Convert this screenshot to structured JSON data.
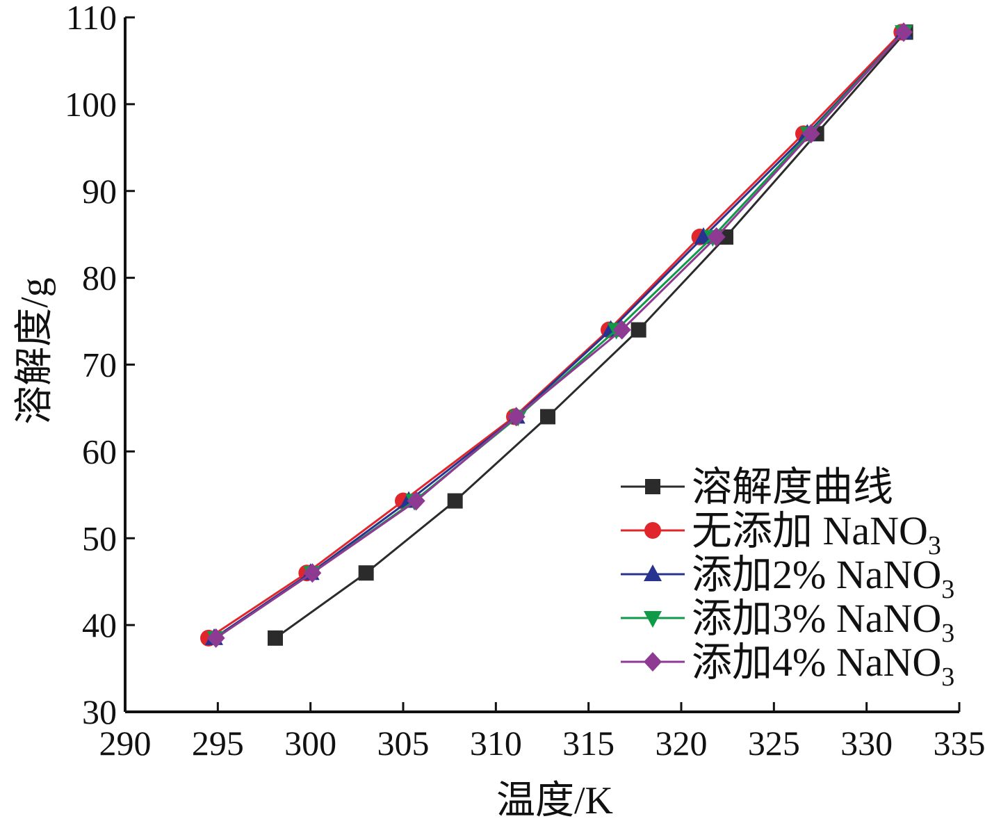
{
  "chart_data": {
    "type": "line",
    "xlabel": "温度/K",
    "ylabel": "溶解度/g",
    "xlim": [
      290,
      335
    ],
    "ylim": [
      30,
      110
    ],
    "xticks": [
      290,
      295,
      300,
      305,
      310,
      315,
      320,
      325,
      330,
      335
    ],
    "yticks": [
      30,
      40,
      50,
      60,
      70,
      80,
      90,
      100,
      110
    ],
    "grid": false,
    "legend_position": "bottom-right",
    "series": [
      {
        "name": "溶解度曲线",
        "color": "#2b2b2b",
        "marker": "square",
        "x": [
          298.1,
          303.0,
          307.8,
          312.8,
          317.7,
          322.4,
          327.3,
          332.1
        ],
        "y": [
          38.5,
          46.0,
          54.3,
          64.0,
          74.0,
          84.7,
          96.6,
          108.3
        ]
      },
      {
        "name": "无添加 NaNO3",
        "label_main": "无添加 NaNO",
        "label_sub": "3",
        "color": "#e0262b",
        "marker": "circle",
        "x": [
          294.5,
          299.8,
          305.0,
          311.0,
          316.1,
          321.0,
          326.6,
          331.9
        ],
        "y": [
          38.5,
          46.0,
          54.3,
          64.0,
          74.0,
          84.7,
          96.6,
          108.3
        ]
      },
      {
        "name": "添加2% NaNO3",
        "label_main": "添加2% NaNO",
        "label_sub": "3",
        "color": "#27338f",
        "marker": "triangle-up",
        "x": [
          294.8,
          300.0,
          305.3,
          311.1,
          316.2,
          321.2,
          326.8,
          332.0
        ],
        "y": [
          38.5,
          46.0,
          54.3,
          64.0,
          74.0,
          84.7,
          96.6,
          108.3
        ]
      },
      {
        "name": "添加3% NaNO3",
        "label_main": "添加3% NaNO",
        "label_sub": "3",
        "color": "#0f9a48",
        "marker": "triangle-down",
        "x": [
          294.9,
          300.1,
          305.6,
          311.2,
          316.5,
          321.7,
          326.9,
          332.0
        ],
        "y": [
          38.5,
          46.0,
          54.3,
          64.0,
          74.0,
          84.7,
          96.6,
          108.3
        ]
      },
      {
        "name": "添加4% NaNO3",
        "label_main": "添加4% NaNO",
        "label_sub": "3",
        "color": "#8e3a92",
        "marker": "diamond",
        "x": [
          294.9,
          300.1,
          305.7,
          311.1,
          316.8,
          321.9,
          327.0,
          332.0
        ],
        "y": [
          38.5,
          46.0,
          54.3,
          64.0,
          74.0,
          84.7,
          96.6,
          108.3
        ]
      }
    ]
  }
}
